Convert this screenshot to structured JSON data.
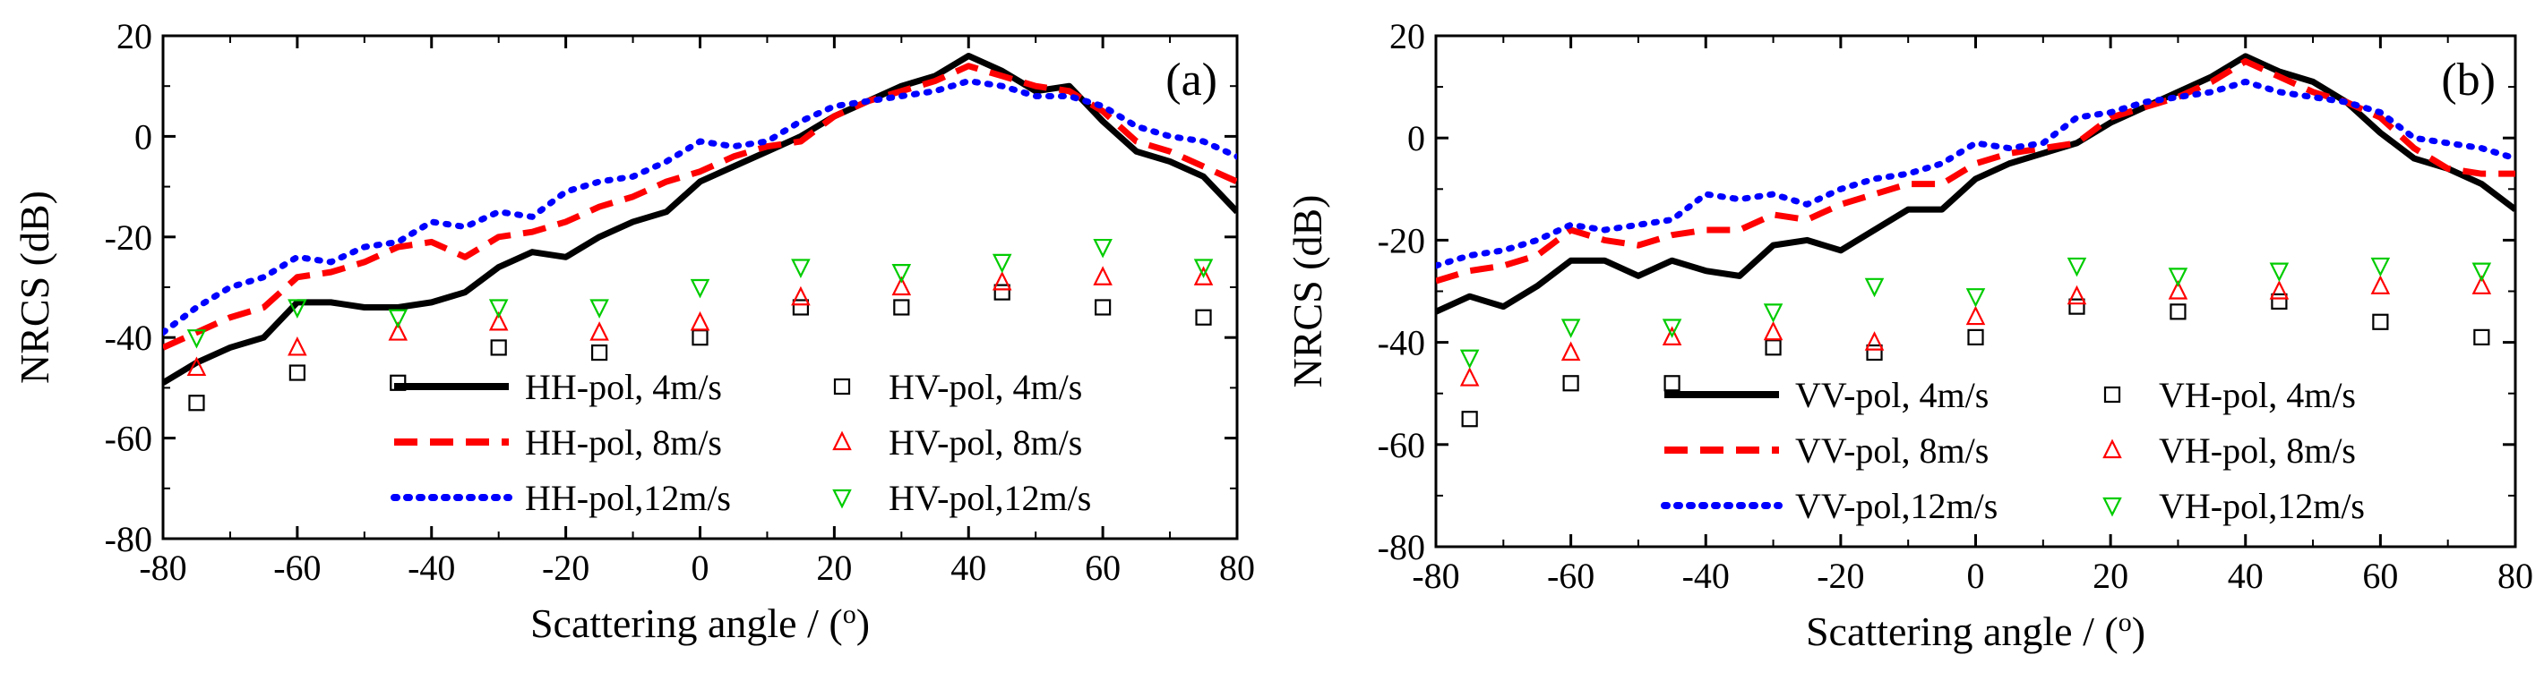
{
  "chart_data": [
    {
      "type": "line",
      "panel_label": "(a)",
      "xlabel": "Scattering angle / (",
      "xlabel_degree": "o",
      "xlabel_end": ")",
      "ylabel": "NRCS (dB)",
      "xlim": [
        -80,
        80
      ],
      "ylim": [
        -80,
        20
      ],
      "xticks": [
        -80,
        -60,
        -40,
        -20,
        0,
        20,
        40,
        60,
        80
      ],
      "yticks": [
        -80,
        -60,
        -40,
        -20,
        0,
        20
      ],
      "grid": false,
      "legend_position": "bottom-right",
      "series": [
        {
          "name": "HH-pol, 4m/s",
          "style": "solid",
          "color": "#000000",
          "kind": "line",
          "x": [
            -80,
            -75,
            -70,
            -65,
            -60,
            -55,
            -50,
            -45,
            -40,
            -35,
            -30,
            -25,
            -20,
            -15,
            -10,
            -5,
            0,
            5,
            10,
            15,
            20,
            25,
            30,
            35,
            40,
            45,
            50,
            55,
            60,
            65,
            70,
            75,
            80
          ],
          "y": [
            -49,
            -45,
            -42,
            -40,
            -33,
            -33,
            -34,
            -34,
            -33,
            -31,
            -26,
            -23,
            -24,
            -20,
            -17,
            -15,
            -9,
            -6,
            -3,
            0,
            4,
            7,
            10,
            12,
            16,
            13,
            9,
            10,
            3,
            -3,
            -5,
            -8,
            -15
          ]
        },
        {
          "name": "HH-pol, 8m/s",
          "style": "dashed",
          "color": "#ff0000",
          "kind": "line",
          "x": [
            -80,
            -75,
            -70,
            -65,
            -60,
            -55,
            -50,
            -45,
            -40,
            -35,
            -30,
            -25,
            -20,
            -15,
            -10,
            -5,
            0,
            5,
            10,
            15,
            20,
            25,
            30,
            35,
            40,
            45,
            50,
            55,
            60,
            65,
            70,
            75,
            80
          ],
          "y": [
            -42,
            -39,
            -36,
            -34,
            -28,
            -27,
            -25,
            -22,
            -21,
            -24,
            -20,
            -19,
            -17,
            -14,
            -12,
            -9,
            -7,
            -4,
            -2,
            -1,
            4,
            7,
            9,
            11,
            14,
            12,
            10,
            9,
            5,
            -1,
            -3,
            -6,
            -9
          ]
        },
        {
          "name": "HH-pol,12m/s",
          "style": "dotted",
          "color": "#0000ff",
          "kind": "line",
          "x": [
            -80,
            -75,
            -70,
            -65,
            -60,
            -55,
            -50,
            -45,
            -40,
            -35,
            -30,
            -25,
            -20,
            -15,
            -10,
            -5,
            0,
            5,
            10,
            15,
            20,
            25,
            30,
            35,
            40,
            45,
            50,
            55,
            60,
            65,
            70,
            75,
            80
          ],
          "y": [
            -39,
            -34,
            -30,
            -28,
            -24,
            -25,
            -22,
            -21,
            -17,
            -18,
            -15,
            -16,
            -11,
            -9,
            -8,
            -5,
            -1,
            -2,
            -1,
            3,
            6,
            7,
            8,
            9,
            11,
            10,
            8,
            8,
            6,
            2,
            0,
            -1,
            -4
          ]
        },
        {
          "name": "HV-pol, 4m/s",
          "style": "marker",
          "marker": "square",
          "color": "#000000",
          "kind": "marker",
          "x": [
            -75,
            -60,
            -45,
            -30,
            -15,
            0,
            15,
            30,
            45,
            60,
            75
          ],
          "y": [
            -53,
            -47,
            -49,
            -42,
            -43,
            -40,
            -34,
            -34,
            -31,
            -34,
            -36
          ]
        },
        {
          "name": "HV-pol, 8m/s",
          "style": "marker",
          "marker": "triangle-up",
          "color": "#ff0000",
          "kind": "marker",
          "x": [
            -75,
            -60,
            -45,
            -30,
            -15,
            0,
            15,
            30,
            45,
            60,
            75
          ],
          "y": [
            -46,
            -42,
            -39,
            -37,
            -39,
            -37,
            -32,
            -30,
            -29,
            -28,
            -28
          ]
        },
        {
          "name": "HV-pol,12m/s",
          "style": "marker",
          "marker": "triangle-down",
          "color": "#00cc00",
          "kind": "marker",
          "x": [
            -75,
            -60,
            -45,
            -30,
            -15,
            0,
            15,
            30,
            45,
            60,
            75
          ],
          "y": [
            -40,
            -34,
            -36,
            -34,
            -34,
            -30,
            -26,
            -27,
            -25,
            -22,
            -26
          ]
        }
      ]
    },
    {
      "type": "line",
      "panel_label": "(b)",
      "xlabel": "Scattering angle / (",
      "xlabel_degree": "o",
      "xlabel_end": ")",
      "ylabel": "NRCS (dB)",
      "xlim": [
        -80,
        80
      ],
      "ylim": [
        -80,
        20
      ],
      "xticks": [
        -80,
        -60,
        -40,
        -20,
        0,
        20,
        40,
        60,
        80
      ],
      "yticks": [
        -80,
        -60,
        -40,
        -20,
        0,
        20
      ],
      "grid": false,
      "legend_position": "bottom-right",
      "series": [
        {
          "name": "VV-pol, 4m/s",
          "style": "solid",
          "color": "#000000",
          "kind": "line",
          "x": [
            -80,
            -75,
            -70,
            -65,
            -60,
            -55,
            -50,
            -45,
            -40,
            -35,
            -30,
            -25,
            -20,
            -15,
            -10,
            -5,
            0,
            5,
            10,
            15,
            20,
            25,
            30,
            35,
            40,
            45,
            50,
            55,
            60,
            65,
            70,
            75,
            80
          ],
          "y": [
            -34,
            -31,
            -33,
            -29,
            -24,
            -24,
            -27,
            -24,
            -26,
            -27,
            -21,
            -20,
            -22,
            -18,
            -14,
            -14,
            -8,
            -5,
            -3,
            -1,
            3,
            6,
            9,
            12,
            16,
            13,
            11,
            7,
            1,
            -4,
            -6,
            -9,
            -14
          ]
        },
        {
          "name": "VV-pol, 8m/s",
          "style": "dashed",
          "color": "#ff0000",
          "kind": "line",
          "x": [
            -80,
            -75,
            -70,
            -65,
            -60,
            -55,
            -50,
            -45,
            -40,
            -35,
            -30,
            -25,
            -20,
            -15,
            -10,
            -5,
            0,
            5,
            10,
            15,
            20,
            25,
            30,
            35,
            40,
            45,
            50,
            55,
            60,
            65,
            70,
            75,
            80
          ],
          "y": [
            -28,
            -26,
            -25,
            -23,
            -18,
            -20,
            -21,
            -19,
            -18,
            -18,
            -15,
            -16,
            -13,
            -11,
            -9,
            -9,
            -5,
            -3,
            -2,
            -1,
            4,
            6,
            8,
            11,
            15,
            12,
            9,
            7,
            4,
            -2,
            -6,
            -7,
            -7
          ]
        },
        {
          "name": "VV-pol,12m/s",
          "style": "dotted",
          "color": "#0000ff",
          "kind": "line",
          "x": [
            -80,
            -75,
            -70,
            -65,
            -60,
            -55,
            -50,
            -45,
            -40,
            -35,
            -30,
            -25,
            -20,
            -15,
            -10,
            -5,
            0,
            5,
            10,
            15,
            20,
            25,
            30,
            35,
            40,
            45,
            50,
            55,
            60,
            65,
            70,
            75,
            80
          ],
          "y": [
            -25,
            -23,
            -22,
            -20,
            -17,
            -18,
            -17,
            -16,
            -11,
            -12,
            -11,
            -13,
            -10,
            -8,
            -7,
            -5,
            -1,
            -2,
            -1,
            4,
            5,
            7,
            8,
            9,
            11,
            9,
            8,
            7,
            5,
            0,
            -1,
            -2,
            -4
          ]
        },
        {
          "name": "VH-pol, 4m/s",
          "style": "marker",
          "marker": "square",
          "color": "#000000",
          "kind": "marker",
          "x": [
            -75,
            -60,
            -45,
            -30,
            -15,
            0,
            15,
            30,
            45,
            60,
            75
          ],
          "y": [
            -55,
            -48,
            -48,
            -41,
            -42,
            -39,
            -33,
            -34,
            -32,
            -36,
            -39
          ]
        },
        {
          "name": "VH-pol, 8m/s",
          "style": "marker",
          "marker": "triangle-up",
          "color": "#ff0000",
          "kind": "marker",
          "x": [
            -75,
            -60,
            -45,
            -30,
            -15,
            0,
            15,
            30,
            45,
            60,
            75
          ],
          "y": [
            -47,
            -42,
            -39,
            -38,
            -40,
            -35,
            -31,
            -30,
            -30,
            -29,
            -29
          ]
        },
        {
          "name": "VH-pol,12m/s",
          "style": "marker",
          "marker": "triangle-down",
          "color": "#00cc00",
          "kind": "marker",
          "x": [
            -75,
            -60,
            -45,
            -30,
            -15,
            0,
            15,
            30,
            45,
            60,
            75
          ],
          "y": [
            -43,
            -37,
            -37,
            -34,
            -29,
            -31,
            -25,
            -27,
            -26,
            -25,
            -26
          ]
        }
      ]
    }
  ]
}
